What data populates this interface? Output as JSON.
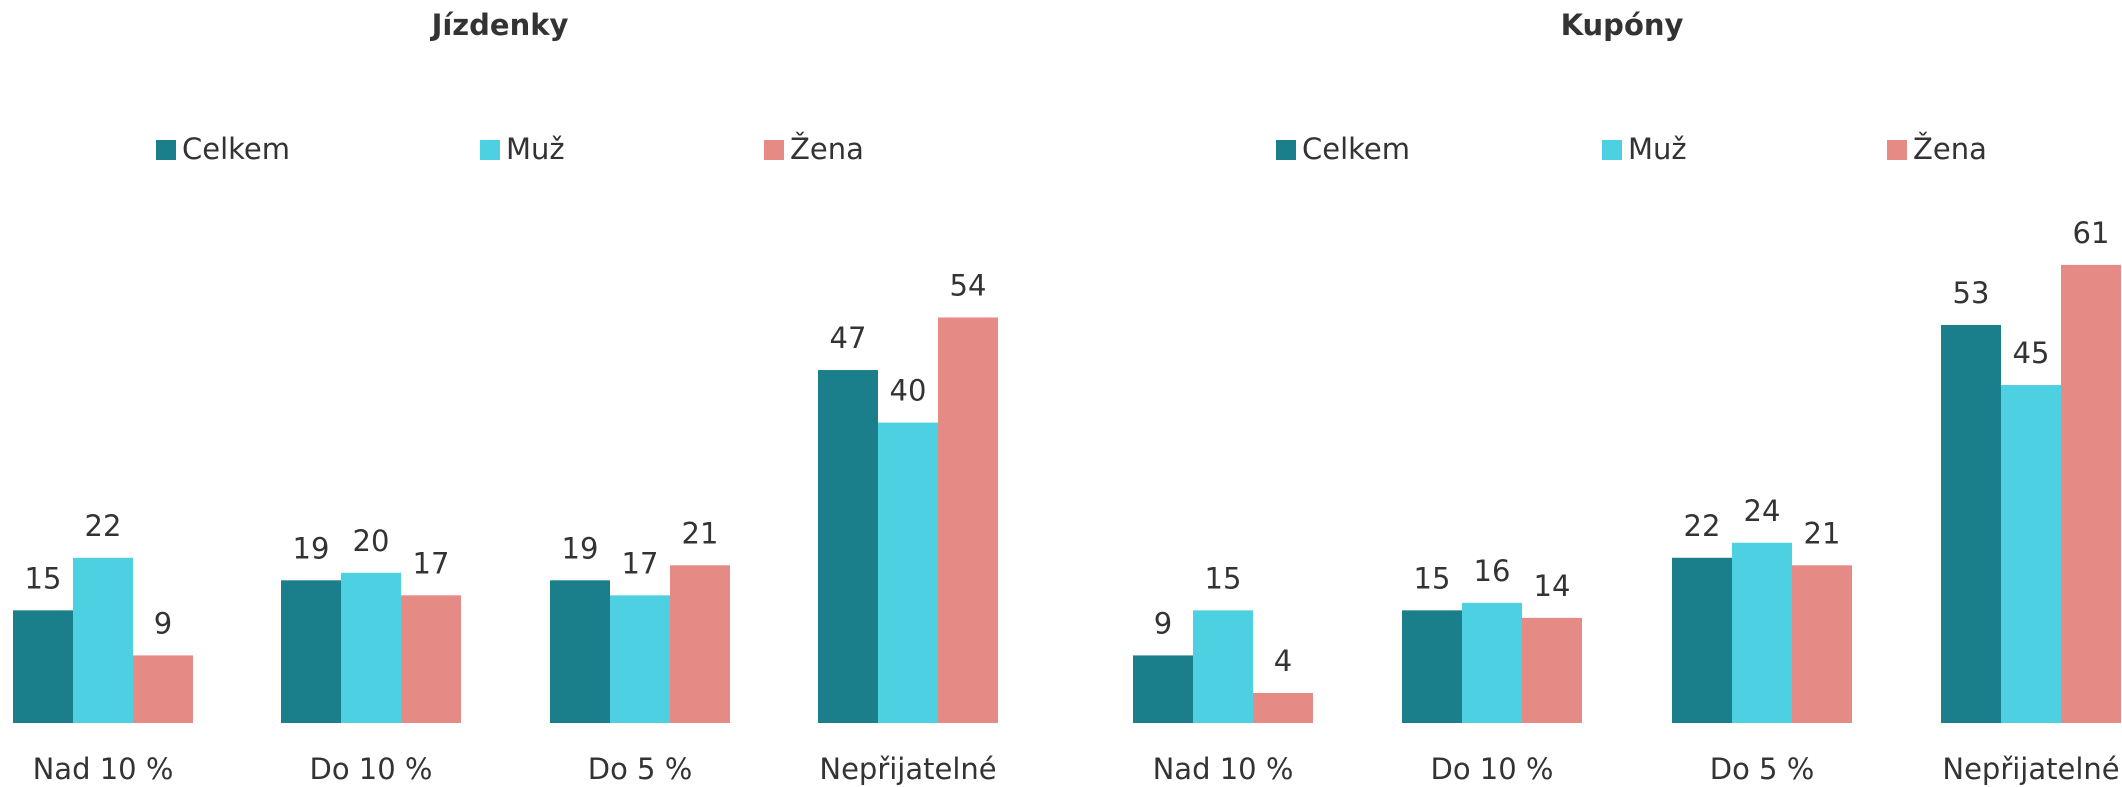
{
  "chart_data": [
    {
      "type": "bar",
      "title": "Jízdenky",
      "categories": [
        "Nad 10 %",
        "Do 10 %",
        "Do 5 %",
        "Nepřijatelné"
      ],
      "series": [
        {
          "name": "Celkem",
          "color": "#1a7f8a",
          "values": [
            15,
            19,
            19,
            47
          ]
        },
        {
          "name": "Muž",
          "color": "#4dd0e1",
          "values": [
            22,
            20,
            17,
            40
          ]
        },
        {
          "name": "Žena",
          "color": "#e68a86",
          "values": [
            9,
            17,
            21,
            54
          ]
        }
      ]
    },
    {
      "type": "bar",
      "title": "Kupóny",
      "categories": [
        "Nad 10 %",
        "Do 10 %",
        "Do 5 %",
        "Nepřijatelné"
      ],
      "series": [
        {
          "name": "Celkem",
          "color": "#1a7f8a",
          "values": [
            9,
            15,
            22,
            53
          ]
        },
        {
          "name": "Muž",
          "color": "#4dd0e1",
          "values": [
            15,
            16,
            24,
            45
          ]
        },
        {
          "name": "Žena",
          "color": "#e68a86",
          "values": [
            4,
            14,
            21,
            61
          ]
        }
      ]
    }
  ]
}
